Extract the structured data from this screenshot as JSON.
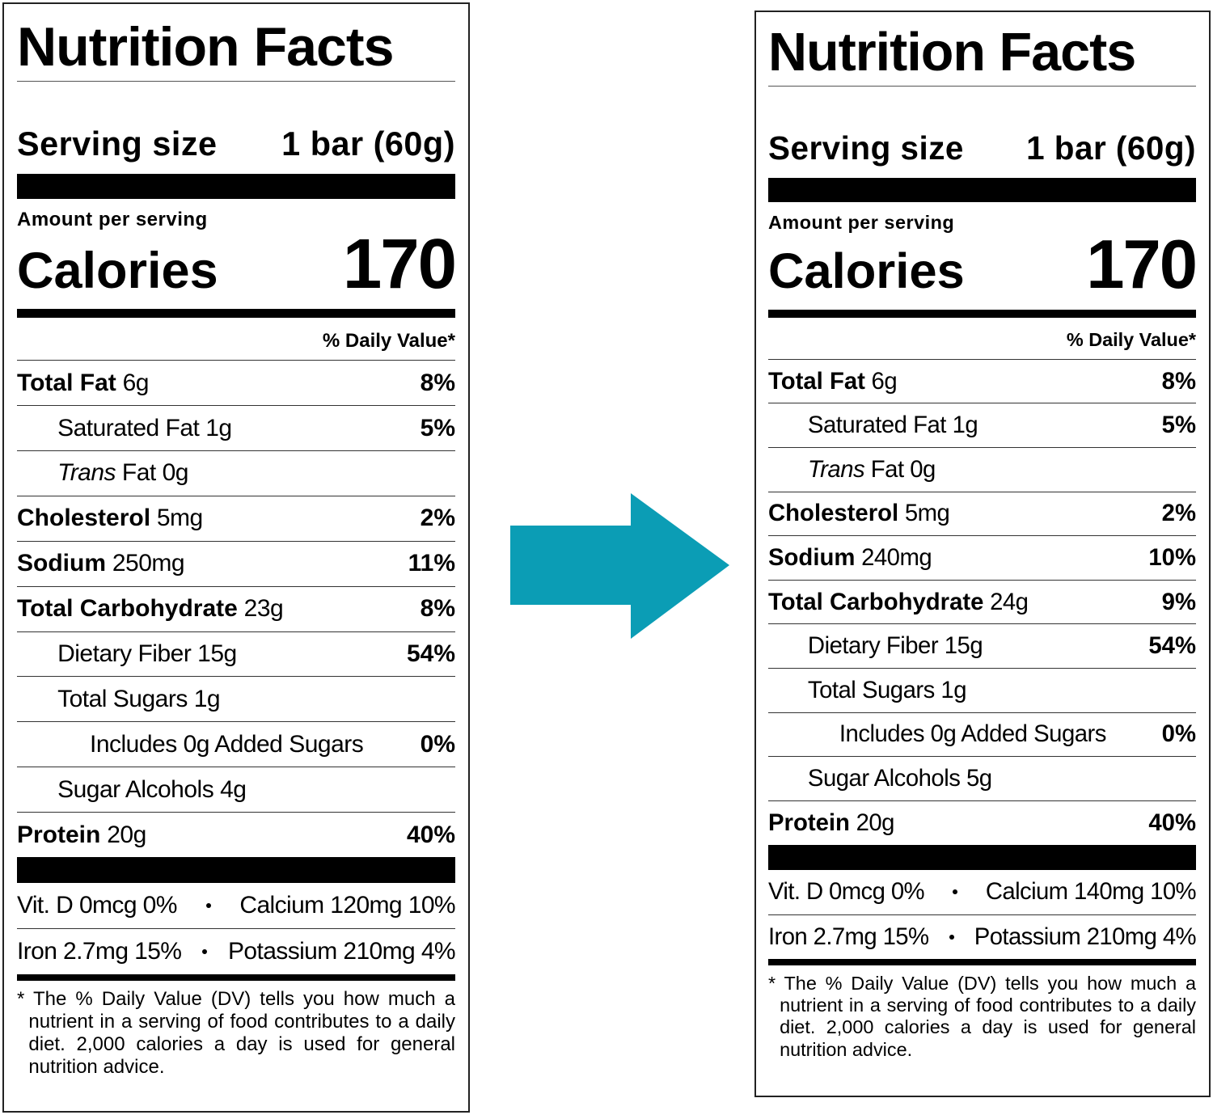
{
  "labels": [
    {
      "title": "Nutrition Facts",
      "serving_label": "Serving size",
      "serving_value": "1 bar (60g)",
      "amount_label": "Amount per serving",
      "calories_label": "Calories",
      "calories": 170,
      "dv_header": "% Daily Value*",
      "nutrients": [
        {
          "name": "Total Fat",
          "amount": "6g",
          "dv": "8%",
          "level": 0
        },
        {
          "name": "Saturated Fat",
          "amount": "1g",
          "dv": "5%",
          "level": 1
        },
        {
          "name_italic": "Trans",
          "name": "Fat",
          "amount": "0g",
          "level": 1
        },
        {
          "name": "Cholesterol",
          "amount": "5mg",
          "dv": "2%",
          "level": 0
        },
        {
          "name": "Sodium",
          "amount": "250mg",
          "dv": "11%",
          "level": 0
        },
        {
          "name": "Total Carbohydrate",
          "amount": "23g",
          "dv": "8%",
          "level": 0
        },
        {
          "name": "Dietary Fiber",
          "amount": "15g",
          "dv": "54%",
          "level": 1
        },
        {
          "name": "Total Sugars",
          "amount": "1g",
          "level": 1
        },
        {
          "name": "Includes 0g Added Sugars",
          "dv": "0%",
          "level": 2
        },
        {
          "name": "Sugar Alcohols",
          "amount": "4g",
          "level": 1
        },
        {
          "name": "Protein",
          "amount": "20g",
          "dv": "40%",
          "level": 0
        }
      ],
      "vitamins": [
        [
          "Vit. D 0mcg 0%",
          "Calcium 120mg 10%"
        ],
        [
          "Iron 2.7mg 15%",
          "Potassium 210mg 4%"
        ]
      ],
      "footnote": "* The % Daily Value (DV) tells you how much a nutrient in a serving of food contributes to a daily diet. 2,000 calories a day is used for general nutrition advice."
    },
    {
      "title": "Nutrition Facts",
      "serving_label": "Serving size",
      "serving_value": "1 bar (60g)",
      "amount_label": "Amount per serving",
      "calories_label": "Calories",
      "calories": 170,
      "dv_header": "% Daily Value*",
      "nutrients": [
        {
          "name": "Total Fat",
          "amount": "6g",
          "dv": "8%",
          "level": 0
        },
        {
          "name": "Saturated Fat",
          "amount": "1g",
          "dv": "5%",
          "level": 1
        },
        {
          "name_italic": "Trans",
          "name": "Fat",
          "amount": "0g",
          "level": 1
        },
        {
          "name": "Cholesterol",
          "amount": "5mg",
          "dv": "2%",
          "level": 0
        },
        {
          "name": "Sodium",
          "amount": "240mg",
          "dv": "10%",
          "level": 0
        },
        {
          "name": "Total Carbohydrate",
          "amount": "24g",
          "dv": "9%",
          "level": 0
        },
        {
          "name": "Dietary Fiber",
          "amount": "15g",
          "dv": "54%",
          "level": 1
        },
        {
          "name": "Total Sugars",
          "amount": "1g",
          "level": 1
        },
        {
          "name": "Includes 0g Added Sugars",
          "dv": "0%",
          "level": 2
        },
        {
          "name": "Sugar Alcohols",
          "amount": "5g",
          "level": 1
        },
        {
          "name": "Protein",
          "amount": "20g",
          "dv": "40%",
          "level": 0
        }
      ],
      "vitamins": [
        [
          "Vit. D 0mcg 0%",
          "Calcium 140mg 10%"
        ],
        [
          "Iron 2.7mg 15%",
          "Potassium 210mg 4%"
        ]
      ],
      "footnote": "* The % Daily Value (DV) tells you how much a nutrient in a serving of food contributes to a daily diet. 2,000 calories a day is used for general nutrition advice."
    }
  ]
}
